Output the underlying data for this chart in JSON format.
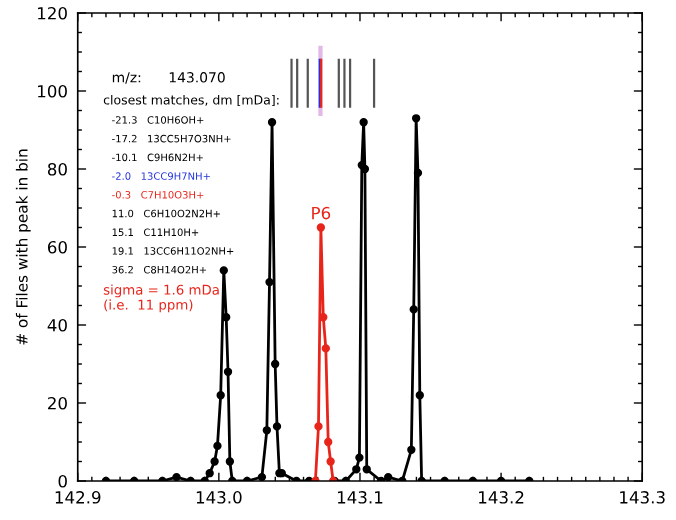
{
  "chart_data": {
    "type": "line",
    "ylabel": "# of Files with peak in bin",
    "xlim": [
      142.9,
      143.3
    ],
    "xticks": [
      142.9,
      {
        "value": 143.0,
        "label": "143.0"
      },
      143.1,
      143.2,
      143.3
    ],
    "ylim": [
      0,
      120
    ],
    "yticks": [
      0,
      20,
      40,
      60,
      80,
      100,
      120
    ],
    "grid": false,
    "legend": false,
    "marker": "circle",
    "line_style": "solid",
    "bands": [
      {
        "axis": "x",
        "from": 143.0705,
        "to": 143.0735,
        "color": "#d9a6e0"
      }
    ],
    "ref_lines": [
      {
        "axis": "x",
        "value": 143.0515,
        "color": "#555555"
      },
      {
        "axis": "x",
        "value": 143.0555,
        "color": "#555555"
      },
      {
        "axis": "x",
        "value": 143.063,
        "color": "#555555"
      },
      {
        "axis": "x",
        "value": 143.0715,
        "color": "#2233dd"
      },
      {
        "axis": "x",
        "value": 143.0725,
        "color": "#e8251b"
      },
      {
        "axis": "x",
        "value": 143.085,
        "color": "#555555"
      },
      {
        "axis": "x",
        "value": 143.089,
        "color": "#555555"
      },
      {
        "axis": "x",
        "value": 143.093,
        "color": "#555555"
      },
      {
        "axis": "x",
        "value": 143.11,
        "color": "#555555"
      }
    ],
    "series": [
      {
        "color": "#000000",
        "x": [
          142.92,
          142.94,
          142.96,
          142.97,
          142.98,
          142.99,
          142.9935,
          142.997,
          142.999,
          143.0013,
          143.0035,
          143.0052,
          143.0065,
          143.0078,
          143.0095,
          143.02,
          143.0305,
          143.034,
          143.0359,
          143.0377,
          143.0399,
          143.0412,
          143.0429,
          143.0446,
          143.055,
          143.064,
          143.067,
          143.082,
          143.09,
          143.0974,
          143.0996,
          143.1013,
          143.1026,
          143.1035,
          143.1048,
          143.115,
          143.12,
          143.13,
          143.1364,
          143.1381,
          143.1398,
          143.1411,
          143.1424,
          143.1437,
          143.16,
          143.18,
          143.2,
          143.22
        ],
        "values": [
          0,
          0,
          0,
          1,
          0,
          0,
          2,
          5,
          9,
          22,
          54,
          42,
          28,
          5,
          0,
          0,
          1,
          13,
          51,
          92,
          30,
          14,
          2,
          2,
          0,
          0,
          null,
          0,
          0,
          3,
          6,
          81,
          92,
          80,
          3,
          0,
          1,
          0,
          8,
          44,
          93,
          79,
          22,
          0,
          0,
          0,
          0,
          0
        ]
      },
      {
        "color": "#e8251b",
        "x": [
          143.0684,
          143.0706,
          143.0723,
          143.074,
          143.0758,
          143.0775,
          143.0792,
          143.081
        ],
        "values": [
          0,
          14,
          65,
          42,
          34,
          10,
          5,
          0
        ]
      }
    ],
    "annotations": [
      "m/z:      143.070",
      "closest matches, dm [mDa]:",
      "-21.3   C10H6OH+",
      "-17.2   13CC5H7O3NH+",
      "-10.1   C9H6N2H+",
      "-2.0   13CC9H7NH+",
      "-0.3   C7H10O3H+",
      "11.0   C6H10O2N2H+",
      "15.1   C11H10H+",
      "19.1   13CC6H11O2NH+",
      "36.2   C8H14O2H+",
      "sigma = 1.6 mDa\n(i.e.  11 ppm)",
      {
        "text": "P6",
        "x": 143.0723,
        "y": 65
      }
    ]
  }
}
